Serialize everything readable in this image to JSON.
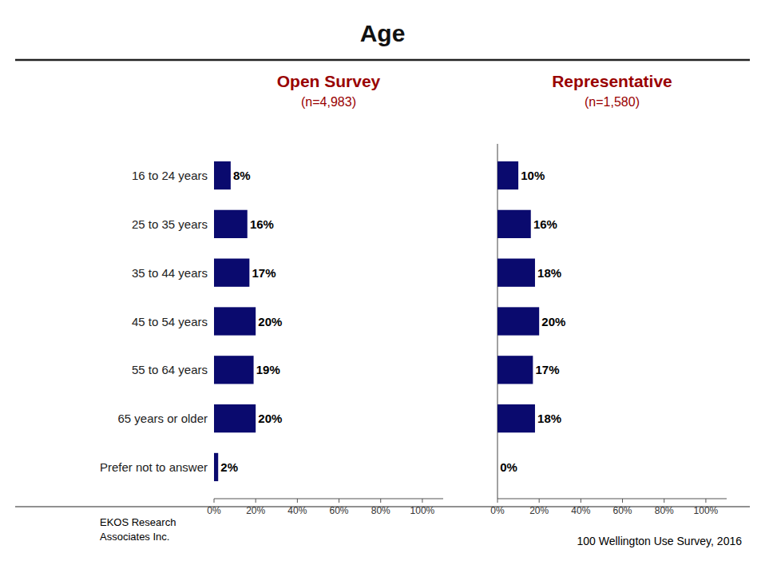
{
  "title": "Age",
  "annotations": [
    "EKOS Research\nAssociates Inc.",
    "100 Wellington Use Survey, 2016"
  ],
  "chart_data": [
    {
      "type": "bar",
      "orientation": "horizontal",
      "title": "Open Survey",
      "subtitle": "(n=4,983)",
      "categories": [
        "16 to 24 years",
        "25 to 35 years",
        "35 to 44 years",
        "45 to 54 years",
        "55 to 64 years",
        "65 years or older",
        "Prefer not to answer"
      ],
      "values": [
        8,
        16,
        17,
        20,
        19,
        20,
        2
      ],
      "value_labels": [
        "8%",
        "16%",
        "17%",
        "20%",
        "19%",
        "20%",
        "2%"
      ],
      "data_labels": true,
      "color": "#0a0a6e",
      "grid": false,
      "xlim": [
        0,
        110
      ],
      "xticks": [
        {
          "value": 0,
          "label": "0%"
        },
        {
          "value": 20,
          "label": "20%"
        },
        {
          "value": 40,
          "label": "40%"
        },
        {
          "value": 60,
          "label": "60%"
        },
        {
          "value": 80,
          "label": "80%"
        },
        {
          "value": 100,
          "label": "100%"
        }
      ]
    },
    {
      "type": "bar",
      "orientation": "horizontal",
      "title": "Representative",
      "subtitle": "(n=1,580)",
      "categories": [
        "16 to 24 years",
        "25 to 35 years",
        "35 to 44 years",
        "45 to 54 years",
        "55 to 64 years",
        "65 years or older",
        "Prefer not to answer"
      ],
      "values": [
        10,
        16,
        18,
        20,
        17,
        18,
        0
      ],
      "value_labels": [
        "10%",
        "16%",
        "18%",
        "20%",
        "17%",
        "18%",
        "0%"
      ],
      "data_labels": true,
      "color": "#0a0a6e",
      "grid": false,
      "tick_labels": "x",
      "xlim": [
        0,
        110
      ],
      "xticks": [
        {
          "value": 0,
          "label": "0%"
        },
        {
          "value": 20,
          "label": "20%"
        },
        {
          "value": 40,
          "label": "40%"
        },
        {
          "value": 60,
          "label": "60%"
        },
        {
          "value": 80,
          "label": "80%"
        },
        {
          "value": 100,
          "label": "100%"
        }
      ]
    }
  ]
}
